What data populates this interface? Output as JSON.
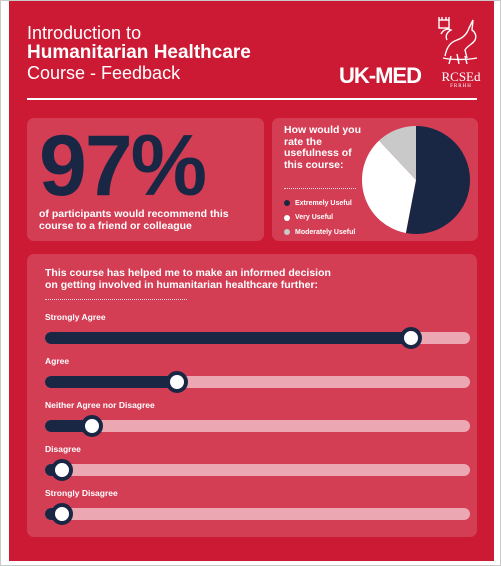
{
  "header": {
    "title_line1": "Introduction to",
    "title_line2": "Humanitarian Healthcare",
    "title_line3": "Course - Feedback",
    "logo_ukmed": "UK-MED",
    "logo_rcsed": "RCSEd",
    "logo_rcsed_sub": "FRRHH"
  },
  "colors": {
    "background": "#cc1a35",
    "dark": "#1a2744",
    "white": "#ffffff",
    "grey": "#c9c9c9"
  },
  "stat": {
    "value": "97%",
    "caption": "of participants would recommend this course to a friend or colleague"
  },
  "chart_data": [
    {
      "type": "pie",
      "title": "How would you rate the usefulness of this course:",
      "labels": [
        "Extremely Useful",
        "Very Useful",
        "Moderately Useful"
      ],
      "values": [
        53,
        35,
        12
      ],
      "colors": [
        "#1a2744",
        "#ffffff",
        "#c9c9c9"
      ]
    },
    {
      "type": "bar",
      "orientation": "horizontal",
      "title": "This course has helped me to make an informed decision on getting involved in humanitarian healthcare further:",
      "categories": [
        "Strongly Agree",
        "Agree",
        "Neither Agree nor Disagree",
        "Disagree",
        "Strongly Disagree"
      ],
      "values": [
        86,
        31,
        11,
        4,
        4
      ],
      "xlim": [
        0,
        100
      ]
    }
  ]
}
